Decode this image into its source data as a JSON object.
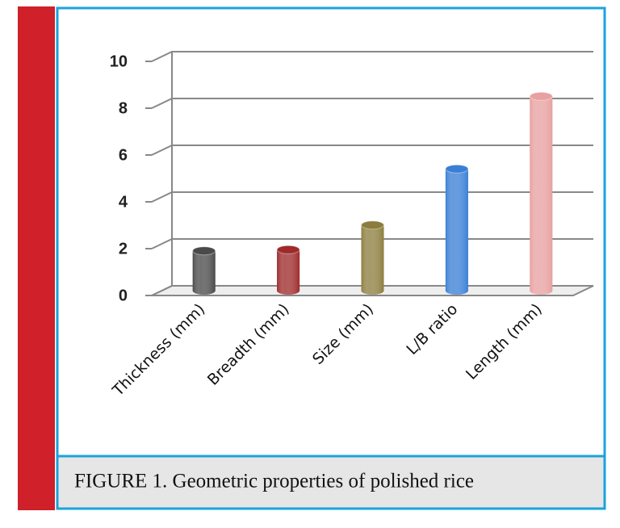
{
  "chart_data": {
    "type": "bar3d",
    "categories": [
      "Thickness (mm)",
      "Breadth (mm)",
      "Size (mm)",
      "L/B ratio",
      "Length (mm)"
    ],
    "values": [
      1.7,
      1.75,
      2.8,
      5.2,
      8.3
    ],
    "colors": [
      "#4a4a4a",
      "#9e2a2b",
      "#8c7d3e",
      "#3a7fd5",
      "#e8a0a0"
    ],
    "ylim": [
      0,
      10
    ],
    "yticks": [
      0,
      2,
      4,
      6,
      8,
      10
    ],
    "grid": true
  },
  "caption": "FIGURE 1. Geometric properties of polished rice"
}
